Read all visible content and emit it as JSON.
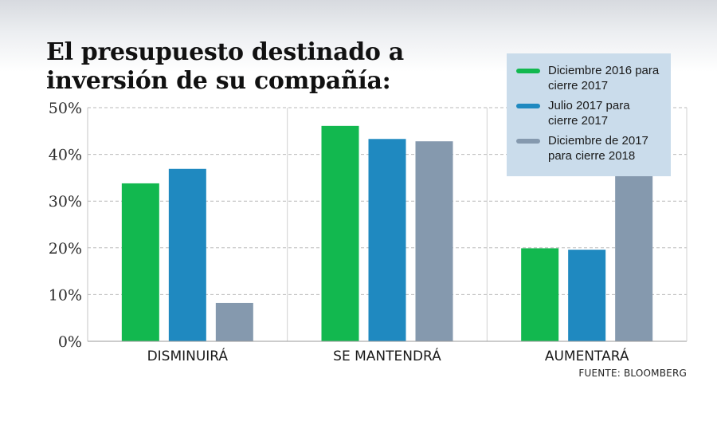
{
  "title": "El presupuesto destinado a inversión de su compañía:",
  "source": "FUENTE: BLOOMBERG",
  "chart_data": {
    "type": "bar",
    "categories": [
      "DISMINUIRÁ",
      "SE MANTENDRÁ",
      "AUMENTARÁ"
    ],
    "series": [
      {
        "name": "Diciembre 2016 para cierre 2017",
        "color": "#12b84f",
        "values": [
          33.8,
          46.1,
          19.9
        ]
      },
      {
        "name": "Julio 2017 para cierre 2017",
        "color": "#1f89c0",
        "values": [
          36.9,
          43.3,
          19.6
        ]
      },
      {
        "name": "Diciembre de 2017 para cierre 2018",
        "color": "#8599ae",
        "values": [
          8.2,
          42.8,
          49.0
        ]
      }
    ],
    "ylim": [
      0,
      50
    ],
    "yticks": [
      "0%",
      "10%",
      "20%",
      "30%",
      "40%",
      "50%"
    ],
    "grid": true,
    "legend_position": "top-right"
  }
}
